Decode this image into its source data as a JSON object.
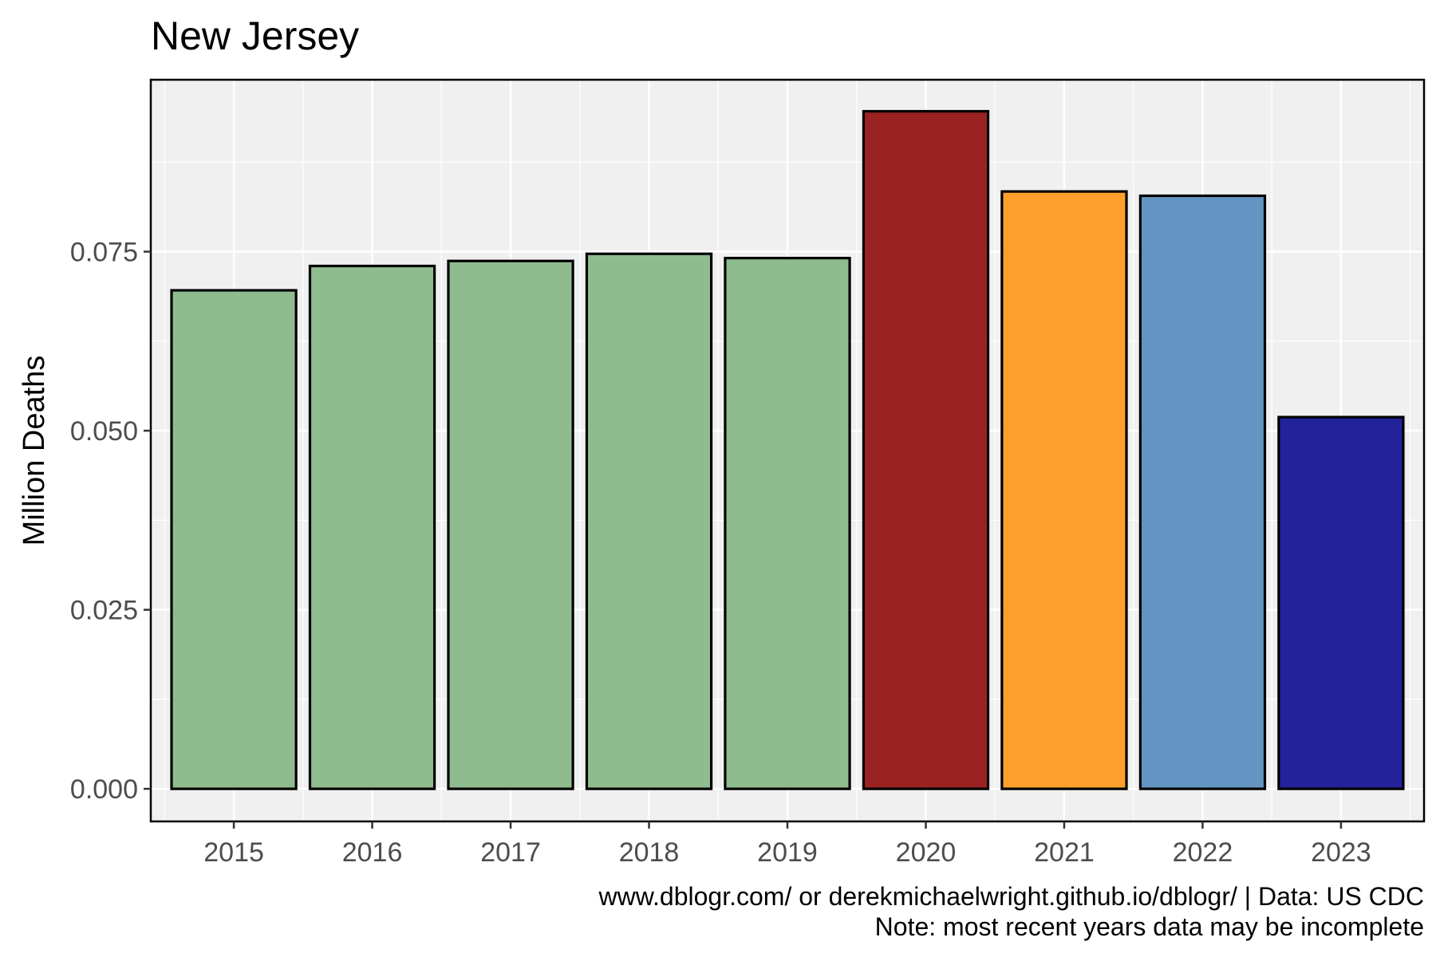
{
  "chart_data": {
    "type": "bar",
    "title": "New Jersey",
    "xlabel": "",
    "ylabel": "Million Deaths",
    "categories": [
      "2015",
      "2016",
      "2017",
      "2018",
      "2019",
      "2020",
      "2021",
      "2022",
      "2023"
    ],
    "values": [
      0.0696,
      0.073,
      0.0737,
      0.0747,
      0.0741,
      0.0946,
      0.0834,
      0.0828,
      0.0519
    ],
    "bar_colors": [
      "#8fbc8f",
      "#8fbc8f",
      "#8fbc8f",
      "#8fbc8f",
      "#8fbc8f",
      "#9b2222",
      "#ffa02d",
      "#6495c2",
      "#22229b"
    ],
    "yticks": [
      "0.000",
      "0.025",
      "0.050",
      "0.075"
    ],
    "ytick_values": [
      0,
      0.025,
      0.05,
      0.075
    ],
    "ylim": [
      -0.00455,
      0.099
    ],
    "grid": true,
    "legend": "none",
    "captions": [
      "www.dblogr.com/ or derekmichaelwright.github.io/dblogr/ | Data: US CDC",
      "Note: most recent years data may be incomplete"
    ]
  },
  "colors": {
    "panel_background": "#f0f0f0",
    "grid": "#ffffff",
    "bar_outline": "#000000"
  }
}
